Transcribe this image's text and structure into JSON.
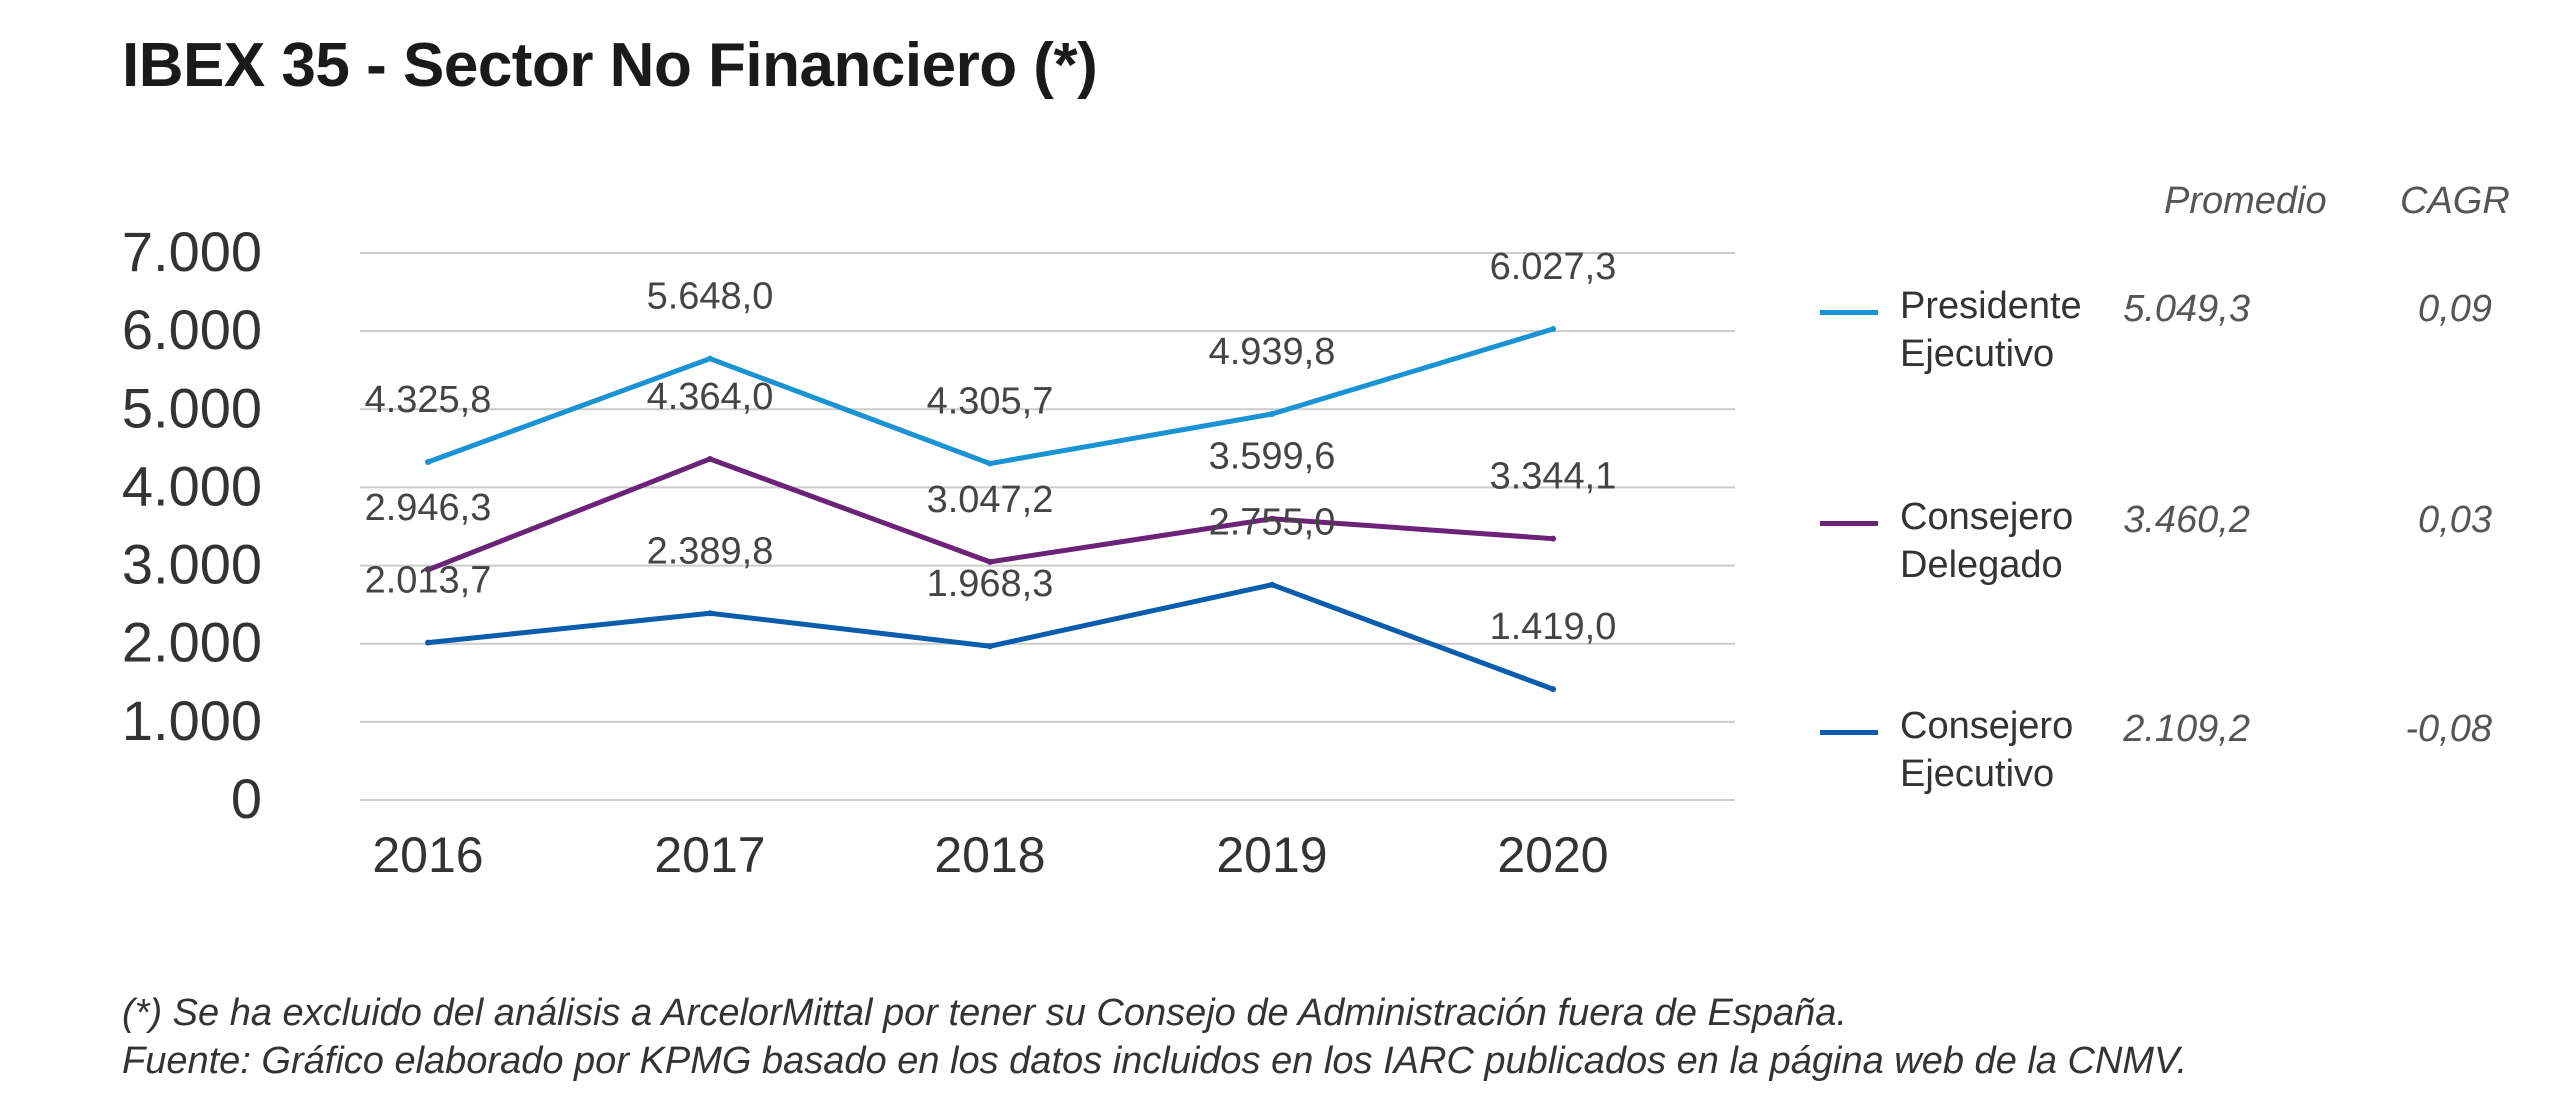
{
  "title": "IBEX 35 - Sector No Financiero (*)",
  "legend_headers": {
    "avg": "Promedio",
    "cagr": "CAGR"
  },
  "chart_data": {
    "type": "line",
    "categories": [
      "2016",
      "2017",
      "2018",
      "2019",
      "2020"
    ],
    "ylim": [
      0,
      7000
    ],
    "yticks": [
      0,
      1000,
      2000,
      3000,
      4000,
      5000,
      6000,
      7000
    ],
    "ytick_labels": [
      "0",
      "1.000",
      "2.000",
      "3.000",
      "4.000",
      "5.000",
      "6.000",
      "7.000"
    ],
    "grid": true,
    "legend_position": "right",
    "series": [
      {
        "name": "Presidente Ejecutivo",
        "name_lines": [
          "Presidente",
          "Ejecutivo"
        ],
        "color": "#1a93d4",
        "values": [
          4325.8,
          5648.0,
          4305.7,
          4939.8,
          6027.3
        ],
        "labels": [
          "4.325,8",
          "5.648,0",
          "4.305,7",
          "4.939,8",
          "6.027,3"
        ],
        "avg": "5.049,3",
        "cagr": "0,09"
      },
      {
        "name": "Consejero Delegado",
        "name_lines": [
          "Consejero",
          "Delegado"
        ],
        "color": "#6b2377",
        "values": [
          2946.3,
          4364.0,
          3047.2,
          3599.6,
          3344.1
        ],
        "labels": [
          "2.946,3",
          "4.364,0",
          "3.047,2",
          "3.599,6",
          "3.344,1"
        ],
        "avg": "3.460,2",
        "cagr": "0,03"
      },
      {
        "name": "Consejero Ejecutivo",
        "name_lines": [
          "Consejero",
          "Ejecutivo"
        ],
        "color": "#0a5cac",
        "values": [
          2013.7,
          2389.8,
          1968.3,
          2755.0,
          1419.0
        ],
        "labels": [
          "2.013,7",
          "2.389,8",
          "1.968,3",
          "2.755,0",
          "1.419,0"
        ],
        "avg": "2.109,2",
        "cagr": "-0,08"
      }
    ]
  },
  "footnotes": [
    "(*) Se ha excluido del análisis a ArcelorMittal por tener su Consejo de Administración fuera de España.",
    "Fuente: Gráfico elaborado por KPMG basado en los datos incluidos en los IARC publicados en la página web de la CNMV."
  ]
}
